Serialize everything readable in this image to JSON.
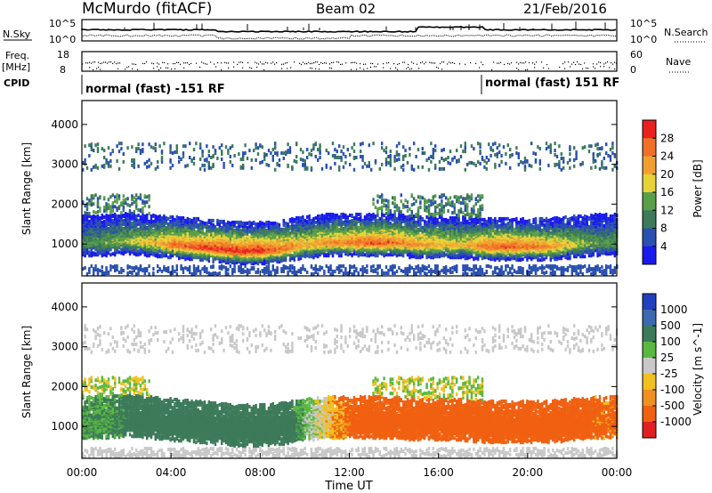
{
  "header": {
    "station": "McMurdo (fitACF)",
    "beam": "Beam 02",
    "date": "21/Feb/2016"
  },
  "status_panels": {
    "left_labels": {
      "nsky": "N.Sky",
      "freq_top": "Freq.",
      "freq_unit": "[MHz]",
      "cpid": "CPID"
    },
    "right_labels": {
      "nsearch": "N.Search",
      "nave": "Nave"
    },
    "noise_ticks_left": [
      "10^5",
      "10^0"
    ],
    "noise_ticks_right": [
      "10^5",
      "10^0"
    ],
    "freq_ticks": [
      "18",
      "8"
    ],
    "nave_ticks": [
      "60",
      "0"
    ],
    "cpid_segments": [
      "normal (fast) -151 RF",
      "normal (fast) 151 RF"
    ]
  },
  "colors": {
    "power_scale": [
      "#1a1aee",
      "#2a50b0",
      "#3c7a5a",
      "#5aa04a",
      "#e8d23a",
      "#f0a030",
      "#f07028",
      "#e82020"
    ],
    "velocity_scale": [
      "#2040c0",
      "#3c6ab0",
      "#3c7a5a",
      "#5ab840",
      "#c8c8c8",
      "#f0c020",
      "#f09020",
      "#f06010",
      "#e02020"
    ]
  },
  "chart_data": [
    {
      "type": "heatmap",
      "panel": "power",
      "ylabel": "Slant Range [km]",
      "yticks": [
        1000,
        2000,
        3000,
        4000
      ],
      "ylim": [
        200,
        4600
      ],
      "colorbar_label": "Power [dB]",
      "colorbar_ticks": [
        4,
        8,
        12,
        16,
        20,
        24,
        28
      ],
      "colorbar_range": [
        0,
        32
      ],
      "x_hours": [
        0,
        1,
        2,
        3,
        4,
        5,
        6,
        7,
        8,
        9,
        10,
        11,
        12,
        13,
        14,
        15,
        16,
        17,
        18,
        19,
        20,
        21,
        22,
        23
      ],
      "main_band_center_km": [
        1000,
        1000,
        1050,
        1000,
        950,
        900,
        850,
        800,
        800,
        850,
        950,
        1000,
        1000,
        1000,
        1000,
        950,
        950,
        950,
        900,
        900,
        900,
        900,
        950,
        1000
      ],
      "main_band_peak_db": [
        12,
        14,
        16,
        20,
        26,
        28,
        30,
        30,
        30,
        26,
        22,
        24,
        26,
        28,
        26,
        24,
        22,
        20,
        26,
        28,
        26,
        24,
        18,
        14
      ]
    },
    {
      "type": "heatmap",
      "panel": "velocity",
      "ylabel": "Slant Range [km]",
      "xlabel": "Time UT",
      "yticks": [
        1000,
        2000,
        3000,
        4000
      ],
      "xticks": [
        "00:00",
        "04:00",
        "08:00",
        "12:00",
        "16:00",
        "20:00",
        "00:00"
      ],
      "ylim": [
        200,
        4600
      ],
      "colorbar_label": "Velocity [m s^-1]",
      "colorbar_ticks": [
        "1000",
        "500",
        "100",
        "25",
        "-25",
        "-100",
        "-500",
        "-1000"
      ],
      "x_hours": [
        0,
        1,
        2,
        3,
        4,
        5,
        6,
        7,
        8,
        9,
        10,
        11,
        12,
        13,
        14,
        15,
        16,
        17,
        18,
        19,
        20,
        21,
        22,
        23
      ],
      "main_band_velocity": [
        100,
        100,
        150,
        300,
        400,
        400,
        400,
        350,
        300,
        250,
        50,
        -50,
        -150,
        -200,
        -250,
        -250,
        -250,
        -250,
        -300,
        -300,
        -250,
        -250,
        -200,
        -150
      ]
    }
  ]
}
